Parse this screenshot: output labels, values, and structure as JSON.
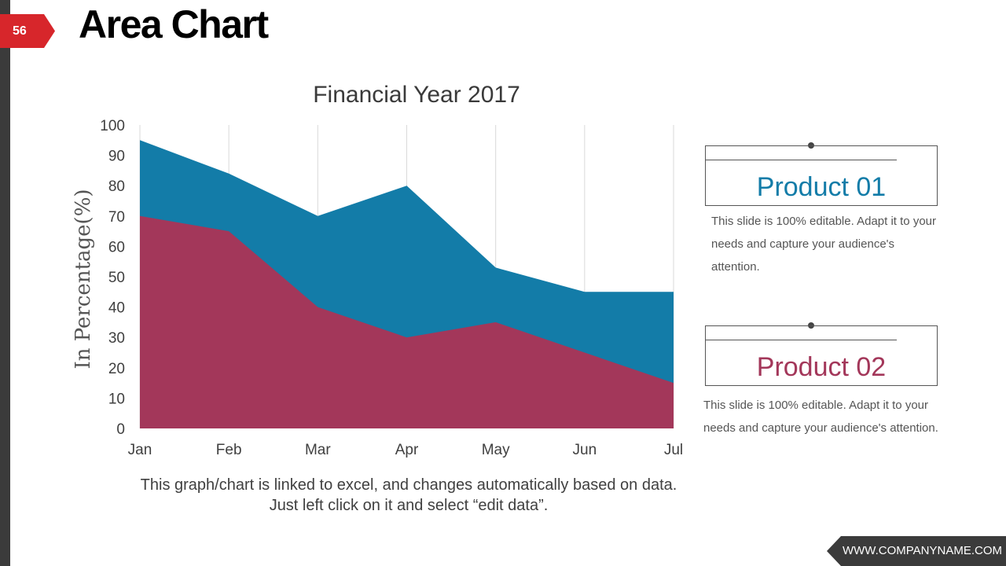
{
  "slide": {
    "number": "56",
    "title": "Area Chart"
  },
  "chart_data": {
    "type": "area",
    "title": "Financial Year 2017",
    "xlabel": "",
    "ylabel": "In Percentage(%)",
    "categories": [
      "Jan",
      "Feb",
      "Mar",
      "Apr",
      "May",
      "Jun",
      "Jul"
    ],
    "ylim": [
      0,
      100
    ],
    "yticks": [
      0,
      10,
      20,
      30,
      40,
      50,
      60,
      70,
      80,
      90,
      100
    ],
    "series": [
      {
        "name": "Product 01",
        "color": "#137ca8",
        "values": [
          95,
          84,
          70,
          80,
          53,
          45,
          45
        ]
      },
      {
        "name": "Product 02",
        "color": "#a3375a",
        "values": [
          70,
          65,
          40,
          30,
          35,
          25,
          15
        ]
      }
    ],
    "grid": "vertical",
    "legend": "right"
  },
  "note": "This graph/chart is linked to excel, and changes automatically based on data. Just left click on it and select “edit data”.",
  "products": [
    {
      "label": "Product 01",
      "color": "#137ca8",
      "description": "This slide is 100% editable. Adapt it to your needs and capture your audience's attention."
    },
    {
      "label": "Product 02",
      "color": "#a3375a",
      "description": "This slide is 100% editable. Adapt it to your needs and capture your audience's attention."
    }
  ],
  "footer": {
    "url": "WWW.COMPANYNAME.COM"
  },
  "colors": {
    "accent": "#d7262b",
    "dark": "#3b3b3b"
  }
}
